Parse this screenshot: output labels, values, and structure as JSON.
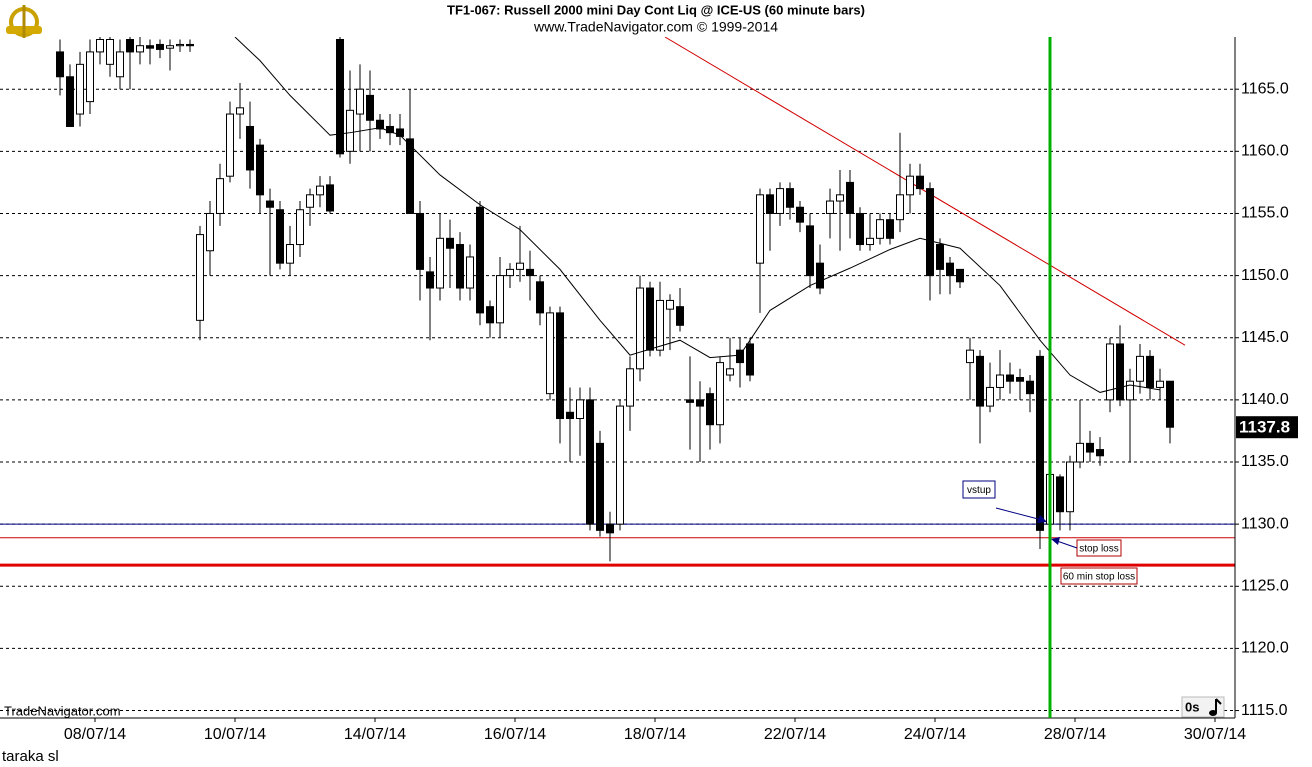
{
  "chart_data": {
    "type": "candlestick",
    "title": "TF1-067:  Russell 2000 mini Day Cont Liq @ ICE-US  (60 minute bars)",
    "subtitle": "www.TradeNavigator.com © 1999-2014",
    "watermark": "TradeNavigator.com",
    "footer": "taraka sl",
    "corner_label": "0s",
    "x": [
      0,
      1,
      2,
      3,
      4,
      5,
      6,
      7,
      8,
      9,
      10,
      11,
      12,
      13,
      14,
      15,
      16,
      17,
      18,
      19,
      20,
      21,
      22,
      23,
      24,
      25,
      26,
      27,
      28,
      29,
      30,
      31,
      32,
      33,
      34,
      35,
      36,
      37,
      38,
      39,
      40,
      41,
      42,
      43,
      44,
      45,
      46,
      47,
      48,
      49,
      50,
      51,
      52,
      53,
      54,
      55,
      56,
      57,
      58,
      59,
      60,
      61,
      62,
      63,
      64,
      65,
      66,
      67,
      68,
      69,
      70,
      71,
      72,
      73,
      74,
      75,
      76,
      77,
      78,
      79,
      80,
      81,
      82,
      83,
      84,
      85,
      86,
      87,
      88,
      89,
      90,
      91,
      92,
      93,
      94,
      95,
      96,
      97,
      98,
      99,
      100,
      101,
      102,
      103,
      104,
      105,
      106,
      107,
      108,
      109,
      110,
      111
    ],
    "open": [
      1168,
      1166,
      1163,
      1164,
      1168,
      1167,
      1166,
      1169,
      1168,
      1168.5,
      1168.6,
      1168.3,
      1168.5,
      1168.6,
      1146.4,
      1152,
      1155,
      1158,
      1163,
      1162,
      1160.5,
      1156,
      1155.3,
      1151,
      1152.5,
      1155.5,
      1156.5,
      1157.3,
      1169,
      1160,
      1163,
      1164.5,
      1162.5,
      1162,
      1161.8,
      1161,
      1155,
      1150.3,
      1149,
      1153,
      1152.5,
      1149,
      1155.5,
      1147.5,
      1146.2,
      1150,
      1150.5,
      1150.5,
      1149.5,
      1140.5,
      1147,
      1139,
      1138.5,
      1140,
      1136.5,
      1130,
      1130,
      1139.5,
      1142.5,
      1149,
      1144,
      1147.3,
      1147.5,
      1140,
      1140,
      1140.5,
      1138,
      1142,
      1144,
      1144.5,
      1151,
      1156.5,
      1155,
      1157,
      1155.5,
      1154,
      1151,
      1155,
      1156,
      1157.5,
      1155,
      1152.5,
      1153,
      1154.5,
      1154.5,
      1156.5,
      1158,
      1157,
      1152.5,
      1151,
      1150.5,
      1143,
      1143.5,
      1139.5,
      1141,
      1142,
      1141.8,
      1141.5,
      1143.5,
      1130,
      1133.8,
      1131,
      1135,
      1136.5,
      1136,
      1140,
      1144.5,
      1140,
      1141.5,
      1143.5,
      1141,
      1141.5
    ],
    "high": [
      1169,
      1167,
      1168,
      1169,
      1169.2,
      1169.2,
      1169,
      1169.2,
      1169.2,
      1169,
      1169,
      1169,
      1169,
      1169,
      1154,
      1156,
      1159,
      1164,
      1165.5,
      1164,
      1161,
      1157,
      1156,
      1154,
      1156,
      1157,
      1158,
      1158,
      1169.2,
      1166.5,
      1167,
      1166.5,
      1163,
      1163,
      1163,
      1165,
      1156,
      1151.5,
      1155,
      1154.5,
      1153.5,
      1152.5,
      1156,
      1148,
      1151.5,
      1151,
      1154,
      1152,
      1150,
      1147.5,
      1147.5,
      1141,
      1141,
      1141,
      1137.5,
      1131,
      1140,
      1143.5,
      1150,
      1149.5,
      1149.5,
      1148.5,
      1149,
      1143.5,
      1141.5,
      1141,
      1143.5,
      1145,
      1145,
      1145,
      1157,
      1157,
      1157.5,
      1157.5,
      1156,
      1155,
      1152.5,
      1157,
      1158.5,
      1158.5,
      1155.5,
      1155,
      1155,
      1155,
      1161.5,
      1159,
      1159,
      1157.5,
      1153,
      1151.5,
      1150.5,
      1145,
      1144,
      1143,
      1144,
      1143,
      1142.5,
      1142,
      1144,
      1134.5,
      1134,
      1135.5,
      1140,
      1137.5,
      1137,
      1145,
      1146,
      1142.5,
      1144.5,
      1144,
      1142.5,
      1141.5
    ],
    "low": [
      1164.5,
      1162,
      1162,
      1163,
      1167,
      1166,
      1165,
      1165,
      1167,
      1167,
      1167.5,
      1166.5,
      1168,
      1168,
      1144.8,
      1150,
      1154,
      1157.5,
      1161,
      1157,
      1155,
      1150,
      1150.5,
      1150,
      1151.5,
      1154,
      1155.5,
      1155,
      1159.5,
      1159,
      1160,
      1160,
      1161,
      1160.5,
      1160.5,
      1155,
      1148,
      1144.8,
      1148,
      1149,
      1148,
      1148,
      1146,
      1145,
      1145,
      1149,
      1149.5,
      1148,
      1146,
      1140,
      1136.5,
      1135,
      1135.5,
      1129.5,
      1129,
      1127,
      1129.5,
      1137.5,
      1141.5,
      1143.5,
      1143.5,
      1144,
      1145.5,
      1136,
      1135,
      1136,
      1136.5,
      1141.5,
      1141,
      1141.5,
      1147,
      1152,
      1154,
      1154.5,
      1153.5,
      1149,
      1148.5,
      1153,
      1152,
      1153,
      1152,
      1152,
      1152.5,
      1152.5,
      1153.5,
      1155,
      1156.5,
      1148,
      1148.5,
      1148.5,
      1149,
      1140,
      1136.5,
      1139,
      1140,
      1140.5,
      1140,
      1139,
      1128,
      1128.5,
      1129.5,
      1129.5,
      1134.5,
      1135,
      1134.7,
      1139,
      1139.5,
      1135,
      1140.5,
      1140,
      1140,
      1136.5
    ],
    "close": [
      1166,
      1162,
      1167,
      1168,
      1169,
      1169,
      1168,
      1168,
      1168.5,
      1168.3,
      1168.2,
      1168.5,
      1168.6,
      1168.5,
      1153.3,
      1155,
      1157.8,
      1163,
      1163.5,
      1158.5,
      1156.5,
      1155.5,
      1151,
      1152.5,
      1155.3,
      1156.5,
      1157.2,
      1155.2,
      1159.8,
      1163.3,
      1165,
      1162.5,
      1161.8,
      1161.5,
      1161.2,
      1155,
      1150.5,
      1149,
      1153,
      1152.2,
      1149,
      1151.5,
      1147,
      1146.2,
      1150,
      1150.5,
      1151,
      1150,
      1147,
      1147,
      1138.5,
      1138.5,
      1140,
      1130,
      1129.5,
      1129.3,
      1139.5,
      1142.5,
      1149,
      1144,
      1148,
      1148,
      1146,
      1139.8,
      1139.5,
      1138,
      1143,
      1142.5,
      1143,
      1142,
      1156.5,
      1155,
      1157,
      1155.5,
      1154.3,
      1150,
      1149,
      1156,
      1156.5,
      1155,
      1152.5,
      1153,
      1154.5,
      1153,
      1156.5,
      1158,
      1157,
      1150,
      1150.5,
      1150,
      1149.5,
      1144,
      1139.5,
      1141,
      1142,
      1141.5,
      1141.5,
      1140.5,
      1129.5,
      1134,
      1131,
      1135,
      1136.5,
      1135.8,
      1135.5,
      1144.5,
      1140,
      1141.5,
      1143.5,
      1141,
      1141.5,
      1137.8
    ],
    "up_color": "#ffffff",
    "down_color": "#000000",
    "last_price": 1137.8,
    "moving_average": {
      "color": "#000000",
      "x": [
        17.5,
        20,
        23,
        27,
        29,
        32,
        34,
        38,
        42,
        46,
        50,
        54,
        57,
        62,
        65,
        68,
        71,
        75,
        79,
        83,
        86,
        90,
        94,
        98,
        101,
        104,
        107,
        110
      ],
      "values": [
        1169.2,
        1167.3,
        1164.5,
        1161.3,
        1161.5,
        1161.9,
        1161.3,
        1158.1,
        1155.7,
        1153.7,
        1150.5,
        1146.4,
        1143.6,
        1144.8,
        1143.4,
        1143.6,
        1147.2,
        1149.2,
        1150.6,
        1152.1,
        1153,
        1152.2,
        1149.2,
        1144.8,
        1142,
        1140.6,
        1141.2,
        1140.8
      ]
    },
    "trend_line": {
      "color": "#d00000",
      "x": [
        60.5,
        112.5
      ],
      "values": [
        1169.2,
        1144.4
      ]
    },
    "levels": [
      {
        "value": 1130,
        "color": "#000080",
        "width": 1
      },
      {
        "value": 1128.9,
        "color": "#d00000",
        "width": 1
      },
      {
        "value": 1126.7,
        "color": "#e00000",
        "width": 3
      }
    ],
    "vertical_marker": {
      "x": 99,
      "color": "#00b000"
    },
    "annotations": [
      {
        "text": "vstup",
        "color": "#000080"
      },
      {
        "text": "stop loss",
        "color": "#b00000"
      },
      {
        "text": "60 min stop loss",
        "color": "#b00000"
      }
    ],
    "xlim": [
      -6,
      117.5
    ],
    "ylim": [
      1114.4,
      1169.2
    ],
    "xticks": [
      {
        "value": 3.5,
        "label": "08/07/14"
      },
      {
        "value": 17.5,
        "label": "10/07/14"
      },
      {
        "value": 31.5,
        "label": "14/07/14"
      },
      {
        "value": 45.5,
        "label": "16/07/14"
      },
      {
        "value": 59.5,
        "label": "18/07/14"
      },
      {
        "value": 73.5,
        "label": "22/07/14"
      },
      {
        "value": 87.5,
        "label": "24/07/14"
      },
      {
        "value": 101.5,
        "label": "28/07/14"
      },
      {
        "value": 115.5,
        "label": "30/07/14"
      }
    ],
    "yticks": [
      {
        "value": 1115,
        "label": "1115.0"
      },
      {
        "value": 1120,
        "label": "1120.0"
      },
      {
        "value": 1125,
        "label": "1125.0"
      },
      {
        "value": 1130,
        "label": "1130.0"
      },
      {
        "value": 1135,
        "label": "1135.0"
      },
      {
        "value": 1140,
        "label": "1140.0"
      },
      {
        "value": 1145,
        "label": "1145.0"
      },
      {
        "value": 1150,
        "label": "1150.0"
      },
      {
        "value": 1155,
        "label": "1155.0"
      },
      {
        "value": 1160,
        "label": "1160.0"
      },
      {
        "value": 1165,
        "label": "1165.0"
      }
    ],
    "grid": true
  }
}
